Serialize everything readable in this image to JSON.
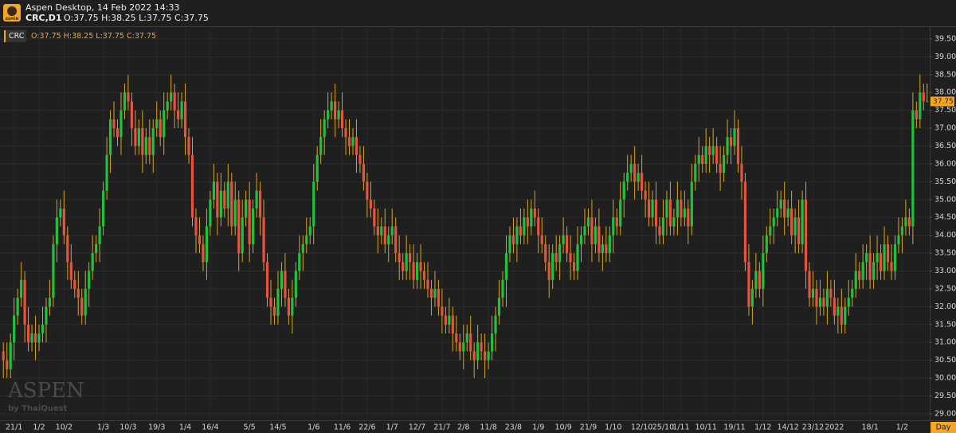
{
  "header": {
    "logo": "ASPEN",
    "app_title": "Aspen Desktop, 14 Feb 2022 14:33",
    "symbol": "CRC,D1",
    "ohlc": "O:37.75 H:38.25 L:37.75 C:37.75"
  },
  "watermark": {
    "brand": "ASPEN",
    "by": "by ThaiQuest"
  },
  "chart_data": {
    "type": "candlestick",
    "symbol": "CRC",
    "legend": "O:37.75 H:38.25 L:37.75 C:37.75",
    "period": "Day",
    "up_color": "#1fc23a",
    "down_color": "#e8533f",
    "wick_color": "#d9a521",
    "grid": true,
    "last_price": 37.75,
    "categories": [
      null,
      null,
      null,
      "21/1",
      null,
      null,
      null,
      null,
      null,
      null,
      "1/2",
      null,
      null,
      null,
      null,
      null,
      null,
      "10/2",
      null,
      null,
      null,
      null,
      null,
      null,
      null,
      null,
      null,
      null,
      "1/3",
      null,
      null,
      null,
      null,
      null,
      null,
      "10/3",
      null,
      null,
      null,
      null,
      null,
      null,
      null,
      "19/3",
      null,
      null,
      null,
      null,
      null,
      null,
      null,
      "1/4",
      null,
      null,
      null,
      null,
      null,
      null,
      "16/4",
      null,
      null,
      null,
      null,
      null,
      null,
      null,
      null,
      null,
      null,
      "5/5",
      null,
      null,
      null,
      null,
      null,
      null,
      null,
      "14/5",
      null,
      null,
      null,
      null,
      null,
      null,
      null,
      null,
      null,
      "1/6",
      null,
      null,
      null,
      null,
      null,
      null,
      null,
      "11/6",
      null,
      null,
      null,
      null,
      null,
      null,
      "22/6",
      null,
      null,
      null,
      null,
      null,
      null,
      "1/7",
      null,
      null,
      null,
      null,
      null,
      null,
      "12/7",
      null,
      null,
      null,
      null,
      null,
      null,
      "21/7",
      null,
      null,
      null,
      null,
      null,
      "2/8",
      null,
      null,
      null,
      null,
      null,
      null,
      "11/8",
      null,
      null,
      null,
      null,
      null,
      null,
      "23/8",
      null,
      null,
      null,
      null,
      null,
      null,
      "1/9",
      null,
      null,
      null,
      null,
      null,
      null,
      "10/9",
      null,
      null,
      null,
      null,
      null,
      null,
      "21/9",
      null,
      null,
      null,
      null,
      null,
      null,
      "1/10",
      null,
      null,
      null,
      null,
      null,
      null,
      null,
      "12/10",
      null,
      null,
      null,
      null,
      null,
      "25/10",
      null,
      null,
      null,
      null,
      "1/11",
      null,
      null,
      null,
      null,
      null,
      null,
      "10/11",
      null,
      null,
      null,
      null,
      null,
      null,
      null,
      "19/11",
      null,
      null,
      null,
      null,
      null,
      null,
      null,
      "1/12",
      null,
      null,
      null,
      null,
      null,
      null,
      "14/12",
      null,
      null,
      null,
      null,
      null,
      null,
      "23/12",
      null,
      null,
      null,
      null,
      null,
      "2022",
      null,
      null,
      null,
      null,
      null,
      null,
      null,
      null,
      null,
      "18/1",
      null,
      null,
      null,
      null,
      null,
      null,
      null,
      null,
      "1/2",
      null,
      null,
      null,
      null,
      null,
      null,
      null
    ],
    "open": [
      30.75,
      30.5,
      30.25,
      31.0,
      31.75,
      32.25,
      32.75,
      31.5,
      31.0,
      31.25,
      31.0,
      31.25,
      31.5,
      32.0,
      32.25,
      33.75,
      34.5,
      34.75,
      34.0,
      33.25,
      32.75,
      32.5,
      32.25,
      31.75,
      32.5,
      33.0,
      33.5,
      33.75,
      34.25,
      35.25,
      36.25,
      37.25,
      37.0,
      36.75,
      37.5,
      38.0,
      37.75,
      37.0,
      36.5,
      37.0,
      36.25,
      36.75,
      36.25,
      37.0,
      37.25,
      36.75,
      37.5,
      37.75,
      38.0,
      37.5,
      37.25,
      37.75,
      36.75,
      36.25,
      34.5,
      34.0,
      33.75,
      33.25,
      34.25,
      35.0,
      35.5,
      34.5,
      35.25,
      34.75,
      35.5,
      34.25,
      35.0,
      33.5,
      34.5,
      35.0,
      33.75,
      34.75,
      35.25,
      34.5,
      33.25,
      32.25,
      32.0,
      31.75,
      32.5,
      33.0,
      32.25,
      31.75,
      32.25,
      33.0,
      33.5,
      33.75,
      34.0,
      34.25,
      35.5,
      36.25,
      36.75,
      37.25,
      37.5,
      37.75,
      37.25,
      37.5,
      37.0,
      36.75,
      36.5,
      36.75,
      36.25,
      36.0,
      35.5,
      35.0,
      34.75,
      34.25,
      34.0,
      34.25,
      33.75,
      34.0,
      34.25,
      33.5,
      33.25,
      33.0,
      33.5,
      33.25,
      32.75,
      33.25,
      33.0,
      32.75,
      32.5,
      32.25,
      32.5,
      32.0,
      31.75,
      31.5,
      31.75,
      31.25,
      31.0,
      30.75,
      31.0,
      31.25,
      30.75,
      30.5,
      31.0,
      30.75,
      30.5,
      30.75,
      31.25,
      31.75,
      32.25,
      32.75,
      33.5,
      34.0,
      33.75,
      34.25,
      34.0,
      34.5,
      34.25,
      34.75,
      34.5,
      34.0,
      33.75,
      33.25,
      32.75,
      33.5,
      33.25,
      33.75,
      34.0,
      33.5,
      33.25,
      33.0,
      33.75,
      34.0,
      34.25,
      34.5,
      33.75,
      34.25,
      33.5,
      33.75,
      33.5,
      34.0,
      34.5,
      34.25,
      35.0,
      35.5,
      35.75,
      36.0,
      35.5,
      35.75,
      35.25,
      35.0,
      34.5,
      35.0,
      34.25,
      34.0,
      34.5,
      35.0,
      34.25,
      34.5,
      35.0,
      34.5,
      34.75,
      34.25,
      35.5,
      36.0,
      36.25,
      36.0,
      36.5,
      36.25,
      36.5,
      36.0,
      35.75,
      36.25,
      36.75,
      36.5,
      37.0,
      36.0,
      35.5,
      33.25,
      32.0,
      32.5,
      33.0,
      32.5,
      33.5,
      34.0,
      34.25,
      34.5,
      34.75,
      35.0,
      34.5,
      34.75,
      34.0,
      34.5,
      33.75,
      35.0,
      33.0,
      32.25,
      32.5,
      32.0,
      32.25,
      32.0,
      32.5,
      32.25,
      31.75,
      32.0,
      31.5,
      32.0,
      32.25,
      32.5,
      33.0,
      32.75,
      33.25,
      33.5,
      32.75,
      33.25,
      33.5,
      33.0,
      33.75,
      33.25,
      33.0,
      33.75,
      34.0,
      34.25,
      34.5,
      34.25,
      37.5,
      37.25,
      38.0,
      37.75
    ],
    "high": [
      31.0,
      31.0,
      31.25,
      32.25,
      32.5,
      33.25,
      33.0,
      32.0,
      31.5,
      31.75,
      31.5,
      32.0,
      32.25,
      32.75,
      34.0,
      35.0,
      35.0,
      35.25,
      34.25,
      33.75,
      33.0,
      33.0,
      32.5,
      33.0,
      33.25,
      34.0,
      34.0,
      34.75,
      35.5,
      36.75,
      37.5,
      37.75,
      37.25,
      38.0,
      38.25,
      38.5,
      38.0,
      37.5,
      37.25,
      37.5,
      37.0,
      37.25,
      37.25,
      37.75,
      37.5,
      38.0,
      38.0,
      38.5,
      38.25,
      38.0,
      38.0,
      38.25,
      37.0,
      36.75,
      34.75,
      34.5,
      34.0,
      34.75,
      35.25,
      36.0,
      35.75,
      35.75,
      35.5,
      36.0,
      35.75,
      35.5,
      35.25,
      35.0,
      35.25,
      35.5,
      35.0,
      35.75,
      35.5,
      35.0,
      33.5,
      32.75,
      32.25,
      33.0,
      33.25,
      33.5,
      32.5,
      32.75,
      33.25,
      34.0,
      34.0,
      34.5,
      34.5,
      36.0,
      36.5,
      37.25,
      37.5,
      38.0,
      38.0,
      38.25,
      37.75,
      38.0,
      37.25,
      37.25,
      37.0,
      37.25,
      36.5,
      36.5,
      35.75,
      35.5,
      35.0,
      34.75,
      34.5,
      34.75,
      34.25,
      34.75,
      34.5,
      34.0,
      33.5,
      34.0,
      33.75,
      33.75,
      33.5,
      33.75,
      33.25,
      33.25,
      32.75,
      33.0,
      32.75,
      32.5,
      32.0,
      32.25,
      32.0,
      31.75,
      31.25,
      31.5,
      31.5,
      31.75,
      31.0,
      31.5,
      31.25,
      31.25,
      31.0,
      31.75,
      32.0,
      32.75,
      33.0,
      34.0,
      34.25,
      34.5,
      34.5,
      34.75,
      34.75,
      35.0,
      35.0,
      35.25,
      34.75,
      34.5,
      34.0,
      33.75,
      33.75,
      34.0,
      34.0,
      34.5,
      34.25,
      34.0,
      33.5,
      34.25,
      34.25,
      34.75,
      34.75,
      35.0,
      34.5,
      34.75,
      34.0,
      34.25,
      34.25,
      35.0,
      34.75,
      35.5,
      35.75,
      36.25,
      36.25,
      36.5,
      36.0,
      36.25,
      35.5,
      35.5,
      35.25,
      35.5,
      34.5,
      35.0,
      35.25,
      35.5,
      34.75,
      35.5,
      35.25,
      35.25,
      35.0,
      36.0,
      36.25,
      36.75,
      36.5,
      37.0,
      36.75,
      37.0,
      36.75,
      36.5,
      36.5,
      37.25,
      37.0,
      37.5,
      37.25,
      36.5,
      35.75,
      33.75,
      32.75,
      33.5,
      33.25,
      34.0,
      34.25,
      34.75,
      34.75,
      35.25,
      35.25,
      35.5,
      35.0,
      35.25,
      34.75,
      35.0,
      35.25,
      35.5,
      33.25,
      33.0,
      32.75,
      32.75,
      32.5,
      33.0,
      32.75,
      32.75,
      32.25,
      32.5,
      32.25,
      32.75,
      32.75,
      33.5,
      33.25,
      33.75,
      33.75,
      34.0,
      33.5,
      34.0,
      33.75,
      34.25,
      34.0,
      33.75,
      34.0,
      34.5,
      34.5,
      35.0,
      34.75,
      38.0,
      37.75,
      38.5,
      38.25,
      38.25
    ],
    "low": [
      30.0,
      30.0,
      30.0,
      30.5,
      31.5,
      32.0,
      31.0,
      30.75,
      30.75,
      30.5,
      30.75,
      31.0,
      31.0,
      31.75,
      32.0,
      33.25,
      34.25,
      33.75,
      32.75,
      32.5,
      32.25,
      31.75,
      31.5,
      31.5,
      32.0,
      32.75,
      33.25,
      33.25,
      34.0,
      35.0,
      35.75,
      36.75,
      36.5,
      36.25,
      37.25,
      37.5,
      36.5,
      36.25,
      36.25,
      35.75,
      36.0,
      36.0,
      35.75,
      36.75,
      36.5,
      36.25,
      37.25,
      37.5,
      37.0,
      37.0,
      37.0,
      36.25,
      36.0,
      34.25,
      33.5,
      33.5,
      33.0,
      32.75,
      34.0,
      34.75,
      34.0,
      34.25,
      34.5,
      34.25,
      34.0,
      34.0,
      33.0,
      33.25,
      34.25,
      33.25,
      33.5,
      34.5,
      34.0,
      33.0,
      32.0,
      31.5,
      31.5,
      31.5,
      32.0,
      32.0,
      31.5,
      31.25,
      32.0,
      32.75,
      33.0,
      33.5,
      33.75,
      33.75,
      35.25,
      36.0,
      36.25,
      37.0,
      37.25,
      36.75,
      37.0,
      36.75,
      36.25,
      36.25,
      36.25,
      35.75,
      35.75,
      35.25,
      34.5,
      34.5,
      34.0,
      33.5,
      33.75,
      33.5,
      33.25,
      33.75,
      33.25,
      32.75,
      32.75,
      32.75,
      32.75,
      32.5,
      32.5,
      32.5,
      32.5,
      32.25,
      31.75,
      32.0,
      31.75,
      31.25,
      31.25,
      31.25,
      30.75,
      30.75,
      30.5,
      30.25,
      30.75,
      30.5,
      30.0,
      30.25,
      30.5,
      30.0,
      30.25,
      30.5,
      30.75,
      31.5,
      32.0,
      32.0,
      33.25,
      33.5,
      33.25,
      33.75,
      33.75,
      33.75,
      34.0,
      34.25,
      33.5,
      33.5,
      33.0,
      32.25,
      32.5,
      33.0,
      32.75,
      33.5,
      33.25,
      32.75,
      32.75,
      32.75,
      33.25,
      33.75,
      34.0,
      33.25,
      33.5,
      33.25,
      33.0,
      33.25,
      33.25,
      33.5,
      34.0,
      34.0,
      34.5,
      35.25,
      35.5,
      35.0,
      35.25,
      35.0,
      34.5,
      34.25,
      34.25,
      33.75,
      33.75,
      33.75,
      34.0,
      34.0,
      34.0,
      34.0,
      34.25,
      34.25,
      33.75,
      34.0,
      35.25,
      35.5,
      35.75,
      35.75,
      35.75,
      36.0,
      35.75,
      35.25,
      35.5,
      36.0,
      36.0,
      36.25,
      35.75,
      35.0,
      33.0,
      31.75,
      31.5,
      32.25,
      32.25,
      32.0,
      33.25,
      33.75,
      33.75,
      34.25,
      34.5,
      34.0,
      34.25,
      33.75,
      33.5,
      33.5,
      33.5,
      32.5,
      32.0,
      32.0,
      31.5,
      31.75,
      31.75,
      31.5,
      32.0,
      31.5,
      31.25,
      31.25,
      31.25,
      31.75,
      32.0,
      32.25,
      32.5,
      32.5,
      32.75,
      32.5,
      32.5,
      32.75,
      32.75,
      32.75,
      33.0,
      32.75,
      32.75,
      33.5,
      33.5,
      34.0,
      34.0,
      33.75,
      37.0,
      37.0,
      37.5,
      37.75
    ],
    "close": [
      30.5,
      30.25,
      31.0,
      31.75,
      32.25,
      32.75,
      31.5,
      31.0,
      31.25,
      31.0,
      31.25,
      31.5,
      32.0,
      32.25,
      33.75,
      34.5,
      34.75,
      34.0,
      33.25,
      32.75,
      32.5,
      32.25,
      31.75,
      32.5,
      33.0,
      33.5,
      33.75,
      34.25,
      35.25,
      36.25,
      37.25,
      37.0,
      36.75,
      37.5,
      38.0,
      37.75,
      37.0,
      36.5,
      37.0,
      36.25,
      36.75,
      36.25,
      37.0,
      37.25,
      36.75,
      37.5,
      37.75,
      38.0,
      37.5,
      37.25,
      37.75,
      36.75,
      36.25,
      34.5,
      34.0,
      33.75,
      33.25,
      34.25,
      35.0,
      35.5,
      34.5,
      35.25,
      34.75,
      35.5,
      34.25,
      35.0,
      33.5,
      34.5,
      35.0,
      33.75,
      34.75,
      35.25,
      34.5,
      33.25,
      32.25,
      32.0,
      31.75,
      32.5,
      33.0,
      32.25,
      31.75,
      32.25,
      33.0,
      33.5,
      33.75,
      34.0,
      34.25,
      35.5,
      36.25,
      36.75,
      37.25,
      37.5,
      37.75,
      37.25,
      37.5,
      37.0,
      36.75,
      36.5,
      36.75,
      36.25,
      36.0,
      35.5,
      35.0,
      34.75,
      34.25,
      34.0,
      34.25,
      33.75,
      34.0,
      34.25,
      33.5,
      33.25,
      33.0,
      33.5,
      33.25,
      32.75,
      33.25,
      33.0,
      32.75,
      32.5,
      32.25,
      32.5,
      32.0,
      31.75,
      31.5,
      31.75,
      31.25,
      31.0,
      30.75,
      31.0,
      31.25,
      30.75,
      30.5,
      31.0,
      30.75,
      30.5,
      30.75,
      31.25,
      31.75,
      32.25,
      32.75,
      33.5,
      34.0,
      33.75,
      34.25,
      34.0,
      34.5,
      34.25,
      34.75,
      34.5,
      34.0,
      33.75,
      33.25,
      32.75,
      33.5,
      33.25,
      33.75,
      34.0,
      33.5,
      33.25,
      33.0,
      33.75,
      34.0,
      34.25,
      34.5,
      33.75,
      34.25,
      33.5,
      33.75,
      33.5,
      34.0,
      34.5,
      34.25,
      35.0,
      35.5,
      35.75,
      36.0,
      35.5,
      35.75,
      35.25,
      35.0,
      34.5,
      35.0,
      34.25,
      34.0,
      34.5,
      35.0,
      34.25,
      34.5,
      35.0,
      34.5,
      34.75,
      34.25,
      35.5,
      36.0,
      36.25,
      36.0,
      36.5,
      36.25,
      36.5,
      36.0,
      35.75,
      36.25,
      36.75,
      36.5,
      37.0,
      36.0,
      35.5,
      33.25,
      32.0,
      32.5,
      33.0,
      32.5,
      33.5,
      34.0,
      34.25,
      34.5,
      34.75,
      35.0,
      34.5,
      34.75,
      34.0,
      34.5,
      33.75,
      35.0,
      33.0,
      32.25,
      32.5,
      32.0,
      32.25,
      32.0,
      32.5,
      32.25,
      31.75,
      32.0,
      31.5,
      32.0,
      32.25,
      32.5,
      33.0,
      32.75,
      33.25,
      33.5,
      32.75,
      33.25,
      33.5,
      33.0,
      33.75,
      33.25,
      33.0,
      33.75,
      34.0,
      34.25,
      34.5,
      34.25,
      37.5,
      37.25,
      38.0,
      37.75,
      37.75
    ],
    "ylim": [
      28.82,
      39.81
    ],
    "yticks": [
      {
        "value": 29,
        "label": "29.00"
      },
      {
        "value": 29.5,
        "label": "29.50"
      },
      {
        "value": 30,
        "label": "30.00"
      },
      {
        "value": 30.5,
        "label": "30.50"
      },
      {
        "value": 31,
        "label": "31.00"
      },
      {
        "value": 31.5,
        "label": "31.50"
      },
      {
        "value": 32,
        "label": "32.00"
      },
      {
        "value": 32.5,
        "label": "32.50"
      },
      {
        "value": 33,
        "label": "33.00"
      },
      {
        "value": 33.5,
        "label": "33.50"
      },
      {
        "value": 34,
        "label": "34.00"
      },
      {
        "value": 34.5,
        "label": "34.50"
      },
      {
        "value": 35,
        "label": "35.00"
      },
      {
        "value": 35.5,
        "label": "35.50"
      },
      {
        "value": 36,
        "label": "36.00"
      },
      {
        "value": 36.5,
        "label": "36.50"
      },
      {
        "value": 37,
        "label": "37.00"
      },
      {
        "value": 37.5,
        "label": "37.50"
      },
      {
        "value": 38,
        "label": "38.00"
      },
      {
        "value": 38.5,
        "label": "38.50"
      },
      {
        "value": 39,
        "label": "39.00"
      },
      {
        "value": 39.5,
        "label": "39.50"
      }
    ]
  }
}
